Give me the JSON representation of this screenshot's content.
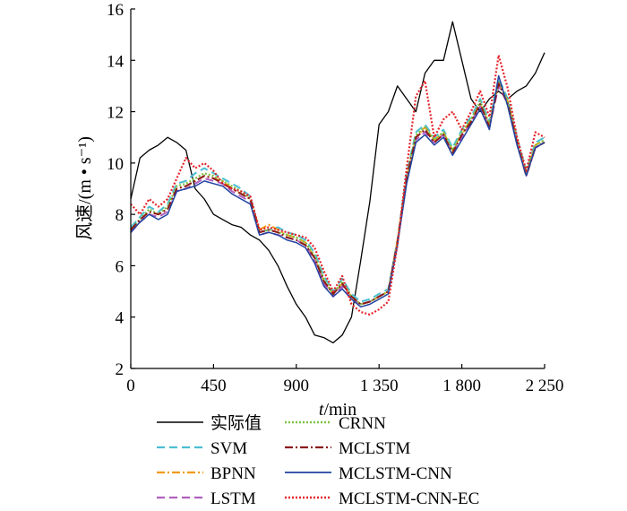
{
  "chart_data": {
    "type": "line",
    "ylabel": "风速/(m • s⁻¹)",
    "xlabel_italic": "t",
    "xlabel_rest": "/min",
    "xlim": [
      0,
      2250
    ],
    "ylim": [
      2,
      16
    ],
    "x_ticks": [
      0,
      450,
      900,
      1350,
      1800,
      2250
    ],
    "x_tick_labels": [
      "0",
      "450",
      "900",
      "1 350",
      "1 800",
      "2 250"
    ],
    "y_ticks": [
      2,
      4,
      6,
      8,
      10,
      12,
      14,
      16
    ],
    "y_tick_labels": [
      "2",
      "4",
      "6",
      "8",
      "10",
      "12",
      "14",
      "16"
    ],
    "grid": false,
    "legend_position": "bottom",
    "x": [
      0,
      50,
      100,
      150,
      200,
      250,
      300,
      350,
      400,
      450,
      500,
      550,
      600,
      650,
      700,
      750,
      800,
      850,
      900,
      950,
      1000,
      1050,
      1100,
      1150,
      1200,
      1250,
      1300,
      1350,
      1400,
      1450,
      1500,
      1550,
      1600,
      1650,
      1700,
      1750,
      1800,
      1850,
      1900,
      1950,
      2000,
      2050,
      2100,
      2150,
      2200,
      2250
    ],
    "series": [
      {
        "name": "实际值",
        "color": "#000000",
        "dash": "solid",
        "width": 1.3,
        "values": [
          8.6,
          10.2,
          10.5,
          10.7,
          11.0,
          10.8,
          10.5,
          9.0,
          8.6,
          8.0,
          7.8,
          7.6,
          7.5,
          7.2,
          7.0,
          6.6,
          6.0,
          5.2,
          4.5,
          4.0,
          3.3,
          3.2,
          3.0,
          3.3,
          4.0,
          6.2,
          8.5,
          11.5,
          12.0,
          13.0,
          12.5,
          12.0,
          13.5,
          14.0,
          14.0,
          15.5,
          14.0,
          12.5,
          12.0,
          12.5,
          12.8,
          12.5,
          12.8,
          13.0,
          13.5,
          14.3
        ]
      },
      {
        "name": "SVM",
        "color": "#4bbed2",
        "dash": "9,5",
        "width": 2,
        "values": [
          7.5,
          7.9,
          8.3,
          8.1,
          8.4,
          9.2,
          9.3,
          9.6,
          9.8,
          9.6,
          9.4,
          9.2,
          9.0,
          8.7,
          7.3,
          7.4,
          7.5,
          7.3,
          7.2,
          7.0,
          6.5,
          5.6,
          5.0,
          5.5,
          4.9,
          4.6,
          4.7,
          4.9,
          5.1,
          7.0,
          9.6,
          11.2,
          11.5,
          11.0,
          11.3,
          10.6,
          11.3,
          11.8,
          12.5,
          11.6,
          13.3,
          12.5,
          11.0,
          9.7,
          10.8,
          11.0
        ]
      },
      {
        "name": "BPNN",
        "color": "#f39a0f",
        "dash": "9,3,2,3",
        "width": 2,
        "values": [
          7.4,
          7.8,
          8.1,
          8.0,
          8.2,
          9.0,
          9.1,
          9.3,
          9.5,
          9.4,
          9.3,
          9.0,
          8.8,
          8.6,
          7.4,
          7.6,
          7.4,
          7.2,
          7.1,
          6.9,
          6.3,
          5.4,
          4.9,
          5.3,
          4.8,
          4.5,
          4.6,
          4.8,
          5.0,
          7.0,
          9.4,
          11.0,
          11.4,
          10.9,
          11.2,
          10.5,
          11.1,
          11.7,
          12.3,
          11.5,
          13.1,
          12.4,
          10.9,
          9.6,
          10.7,
          10.9
        ]
      },
      {
        "name": "LSTM",
        "color": "#b05fc0",
        "dash": "9,5",
        "width": 2,
        "values": [
          7.3,
          7.7,
          8.0,
          7.9,
          8.1,
          8.9,
          9.0,
          9.2,
          9.4,
          9.3,
          9.2,
          8.9,
          8.7,
          8.5,
          7.2,
          7.3,
          7.2,
          7.1,
          7.0,
          6.8,
          6.2,
          5.3,
          4.8,
          5.2,
          4.7,
          4.5,
          4.6,
          4.8,
          5.0,
          6.9,
          9.3,
          10.9,
          11.2,
          10.8,
          11.1,
          10.4,
          11.0,
          11.6,
          12.2,
          11.4,
          13.0,
          12.3,
          10.8,
          9.5,
          10.6,
          10.8
        ]
      },
      {
        "name": "CRNN",
        "color": "#7cc242",
        "dash": "2,2",
        "width": 2.2,
        "values": [
          7.4,
          7.8,
          8.2,
          8.0,
          8.3,
          9.1,
          9.2,
          9.4,
          9.6,
          9.5,
          9.3,
          9.1,
          8.9,
          8.6,
          7.3,
          7.4,
          7.3,
          7.2,
          7.1,
          6.9,
          6.4,
          5.5,
          4.9,
          5.4,
          4.8,
          4.5,
          4.6,
          4.8,
          5.0,
          6.9,
          9.5,
          11.1,
          11.4,
          10.9,
          11.2,
          10.5,
          11.2,
          11.7,
          12.4,
          11.5,
          13.2,
          12.4,
          10.9,
          9.6,
          10.7,
          10.9
        ]
      },
      {
        "name": "MCLSTM",
        "color": "#8b1a1a",
        "dash": "9,3,2,3",
        "width": 2,
        "values": [
          7.4,
          7.8,
          8.1,
          8.0,
          8.2,
          9.0,
          9.1,
          9.3,
          9.5,
          9.4,
          9.2,
          9.0,
          8.8,
          8.6,
          7.3,
          7.4,
          7.3,
          7.1,
          7.0,
          6.8,
          6.3,
          5.4,
          4.9,
          5.3,
          4.8,
          4.5,
          4.6,
          4.8,
          5.0,
          6.9,
          9.4,
          11.0,
          11.3,
          10.8,
          11.1,
          10.4,
          11.1,
          11.6,
          12.3,
          11.4,
          13.1,
          12.3,
          10.8,
          9.5,
          10.6,
          10.8
        ]
      },
      {
        "name": "MCLSTM-CNN",
        "color": "#2143a0",
        "dash": "solid",
        "width": 1.5,
        "values": [
          7.3,
          7.7,
          8.0,
          7.8,
          8.0,
          8.9,
          9.0,
          9.1,
          9.3,
          9.2,
          9.1,
          8.8,
          8.6,
          8.4,
          7.2,
          7.3,
          7.2,
          7.0,
          6.9,
          6.7,
          6.1,
          5.2,
          4.8,
          5.1,
          4.7,
          4.4,
          4.5,
          4.7,
          4.9,
          6.8,
          9.2,
          10.8,
          11.1,
          10.7,
          11.0,
          10.3,
          10.9,
          11.5,
          12.1,
          11.3,
          13.4,
          12.2,
          10.7,
          9.5,
          10.6,
          10.8
        ]
      },
      {
        "name": "MCLSTM-CNN-EC",
        "color": "#e5232a",
        "dash": "2,2",
        "width": 2.2,
        "values": [
          8.4,
          8.0,
          8.6,
          8.3,
          8.6,
          9.4,
          10.2,
          9.8,
          10.0,
          9.7,
          9.2,
          9.0,
          8.9,
          8.7,
          7.4,
          7.5,
          7.4,
          7.3,
          7.2,
          7.1,
          6.7,
          5.8,
          5.0,
          5.6,
          4.5,
          4.2,
          4.1,
          4.3,
          4.6,
          6.8,
          9.8,
          12.6,
          13.2,
          11.0,
          11.7,
          12.0,
          11.3,
          12.0,
          12.8,
          11.8,
          14.2,
          12.9,
          11.0,
          9.7,
          11.2,
          11.0
        ]
      }
    ]
  }
}
